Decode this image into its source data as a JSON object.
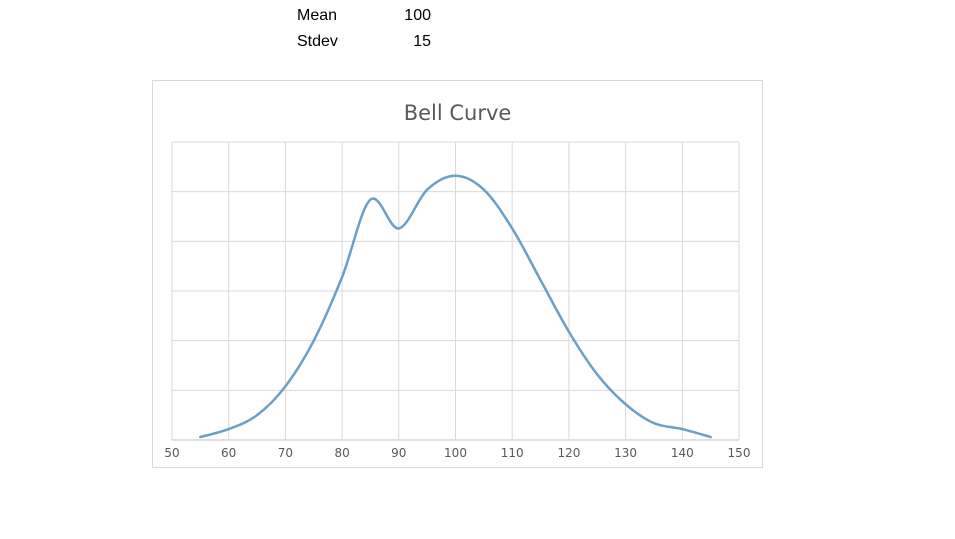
{
  "sheet": {
    "mean_label": "Mean",
    "mean_value": "100",
    "stdev_label": "Stdev",
    "stdev_value": "15"
  },
  "chart_data": {
    "type": "line",
    "title": "Bell Curve",
    "xlabel": "",
    "ylabel": "",
    "xlim": [
      50,
      150
    ],
    "ylim": [
      0,
      0.03
    ],
    "grid": true,
    "legend": "none",
    "x_ticks": [
      "50",
      "60",
      "70",
      "80",
      "90",
      "100",
      "110",
      "120",
      "130",
      "140",
      "150"
    ],
    "series": [
      {
        "color": "#6a9fc8",
        "x": [
          55,
          60,
          65,
          70,
          75,
          80,
          85,
          90,
          95,
          100,
          105,
          110,
          115,
          120,
          125,
          130,
          135,
          140,
          145
        ],
        "y": [
          0.0003,
          0.0011,
          0.0025,
          0.0054,
          0.01,
          0.0164,
          0.0242,
          0.0213,
          0.0252,
          0.0266,
          0.0252,
          0.0213,
          0.0161,
          0.0109,
          0.0066,
          0.0036,
          0.0017,
          0.0011,
          0.0003
        ]
      }
    ]
  }
}
